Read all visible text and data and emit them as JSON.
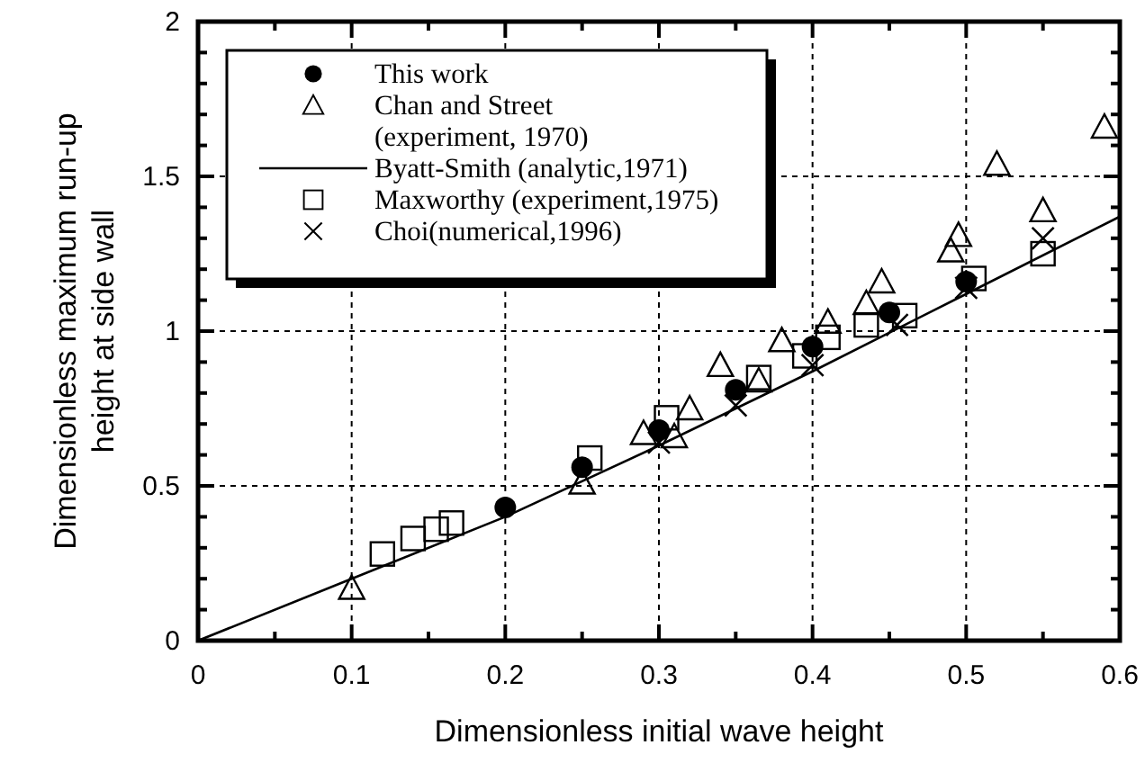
{
  "chart_data": {
    "type": "scatter",
    "xlabel": "Dimensionless initial wave height",
    "ylabel": "Dimensionless maximum run-up\nheight at side wall",
    "xlim": [
      0,
      0.6
    ],
    "ylim": [
      0,
      2
    ],
    "xticks": [
      0,
      {
        "value": 0.05,
        "label": null
      },
      0.1,
      {
        "value": 0.15,
        "label": null
      },
      0.2,
      {
        "value": 0.25,
        "label": null
      },
      0.3,
      {
        "value": 0.35,
        "label": null
      },
      0.4,
      {
        "value": 0.45,
        "label": null
      },
      0.5,
      {
        "value": 0.55,
        "label": null
      },
      0.6
    ],
    "yticks": [
      0,
      {
        "value": 0.1,
        "label": null
      },
      {
        "value": 0.2,
        "label": null
      },
      {
        "value": 0.3,
        "label": null
      },
      {
        "value": 0.4,
        "label": null
      },
      0.5,
      {
        "value": 0.6,
        "label": null
      },
      {
        "value": 0.7,
        "label": null
      },
      {
        "value": 0.8,
        "label": null
      },
      {
        "value": 0.9,
        "label": null
      },
      1,
      {
        "value": 1.1,
        "label": null
      },
      {
        "value": 1.2,
        "label": null
      },
      {
        "value": 1.3,
        "label": null
      },
      {
        "value": 1.4,
        "label": null
      },
      1.5,
      {
        "value": 1.6,
        "label": null
      },
      {
        "value": 1.7,
        "label": null
      },
      {
        "value": 1.8,
        "label": null
      },
      {
        "value": 1.9,
        "label": null
      },
      2
    ],
    "grid": true,
    "legend": "top left",
    "series": [
      {
        "name": "This work",
        "marker": "circle",
        "color": "#000000",
        "x": [
          0.2,
          0.25,
          0.3,
          0.35,
          0.4,
          0.45,
          0.5
        ],
        "values": [
          0.43,
          0.56,
          0.68,
          0.81,
          0.95,
          1.06,
          1.16
        ]
      },
      {
        "name": "Chan and Street\n(experiment, 1970)",
        "marker": "triangle",
        "color": "#000000",
        "x": [
          0.1,
          0.25,
          0.29,
          0.31,
          0.32,
          0.34,
          0.365,
          0.38,
          0.41,
          0.435,
          0.445,
          0.49,
          0.495,
          0.55,
          0.52,
          0.59
        ],
        "values": [
          0.17,
          0.51,
          0.67,
          0.66,
          0.75,
          0.89,
          0.84,
          0.97,
          1.03,
          1.09,
          1.16,
          1.26,
          1.31,
          1.39,
          1.54,
          1.66
        ]
      },
      {
        "name": "Byatt-Smith (analytic,1971)",
        "type": "line",
        "marker": "none",
        "line_style": "solid",
        "color": "#000000",
        "x": [
          0,
          0.1,
          0.2,
          0.3,
          0.4,
          0.5,
          0.6
        ],
        "values": [
          0,
          0.2,
          0.4,
          0.63,
          0.87,
          1.12,
          1.37
        ]
      },
      {
        "name": "Maxworthy (experiment,1975)",
        "marker": "square",
        "color": "#000000",
        "x": [
          0.12,
          0.14,
          0.155,
          0.165,
          0.255,
          0.305,
          0.365,
          0.395,
          0.41,
          0.435,
          0.46,
          0.505,
          0.55
        ],
        "values": [
          0.28,
          0.33,
          0.36,
          0.38,
          0.59,
          0.72,
          0.85,
          0.92,
          0.98,
          1.02,
          1.05,
          1.17,
          1.25
        ]
      },
      {
        "name": "Choi(numerical,1996)",
        "marker": "cross",
        "color": "#000000",
        "x": [
          0.3,
          0.35,
          0.4,
          0.455,
          0.5,
          0.55
        ],
        "values": [
          0.64,
          0.76,
          0.89,
          1.02,
          1.14,
          1.3
        ]
      }
    ]
  }
}
